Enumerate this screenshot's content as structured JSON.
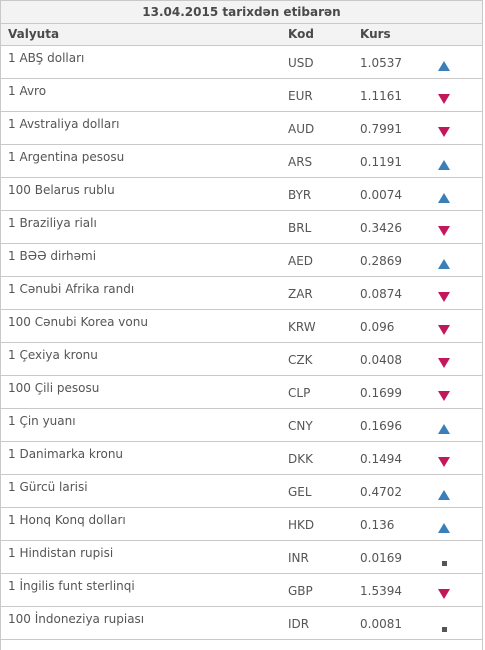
{
  "title": "13.04.2015 tarixdən etibarən",
  "headers": {
    "currency": "Valyuta",
    "code": "Kod",
    "rate": "Kurs"
  },
  "colors": {
    "up": "#3a7fb8",
    "down": "#c2185b",
    "same": "#555555"
  },
  "rows": [
    {
      "name": "1 ABŞ dolları",
      "code": "USD",
      "rate": "1.0537",
      "trend": "up"
    },
    {
      "name": "1 Avro",
      "code": "EUR",
      "rate": "1.1161",
      "trend": "down"
    },
    {
      "name": "1 Avstraliya dolları",
      "code": "AUD",
      "rate": "0.7991",
      "trend": "down"
    },
    {
      "name": "1 Argentina pesosu",
      "code": "ARS",
      "rate": "0.1191",
      "trend": "up"
    },
    {
      "name": "100 Belarus rublu",
      "code": "BYR",
      "rate": "0.0074",
      "trend": "up"
    },
    {
      "name": "1 Braziliya rialı",
      "code": "BRL",
      "rate": "0.3426",
      "trend": "down"
    },
    {
      "name": "1 BƏƏ dirhəmi",
      "code": "AED",
      "rate": "0.2869",
      "trend": "up"
    },
    {
      "name": "1 Cənubi Afrika randı",
      "code": "ZAR",
      "rate": "0.0874",
      "trend": "down"
    },
    {
      "name": "100 Cənubi Korea vonu",
      "code": "KRW",
      "rate": "0.096",
      "trend": "down"
    },
    {
      "name": "1 Çexiya kronu",
      "code": "CZK",
      "rate": "0.0408",
      "trend": "down"
    },
    {
      "name": "100 Çili pesosu",
      "code": "CLP",
      "rate": "0.1699",
      "trend": "down"
    },
    {
      "name": "1 Çin yuanı",
      "code": "CNY",
      "rate": "0.1696",
      "trend": "up"
    },
    {
      "name": "1 Danimarka kronu",
      "code": "DKK",
      "rate": "0.1494",
      "trend": "down"
    },
    {
      "name": "1 Gürcü larisi",
      "code": "GEL",
      "rate": "0.4702",
      "trend": "up"
    },
    {
      "name": "1 Honq Konq dolları",
      "code": "HKD",
      "rate": "0.136",
      "trend": "up"
    },
    {
      "name": "1 Hindistan rupisi",
      "code": "INR",
      "rate": "0.0169",
      "trend": "same"
    },
    {
      "name": "1 İngilis funt sterlinqi",
      "code": "GBP",
      "rate": "1.5394",
      "trend": "down"
    },
    {
      "name": "100 İndoneziya rupiası",
      "code": "IDR",
      "rate": "0.0081",
      "trend": "same"
    }
  ]
}
